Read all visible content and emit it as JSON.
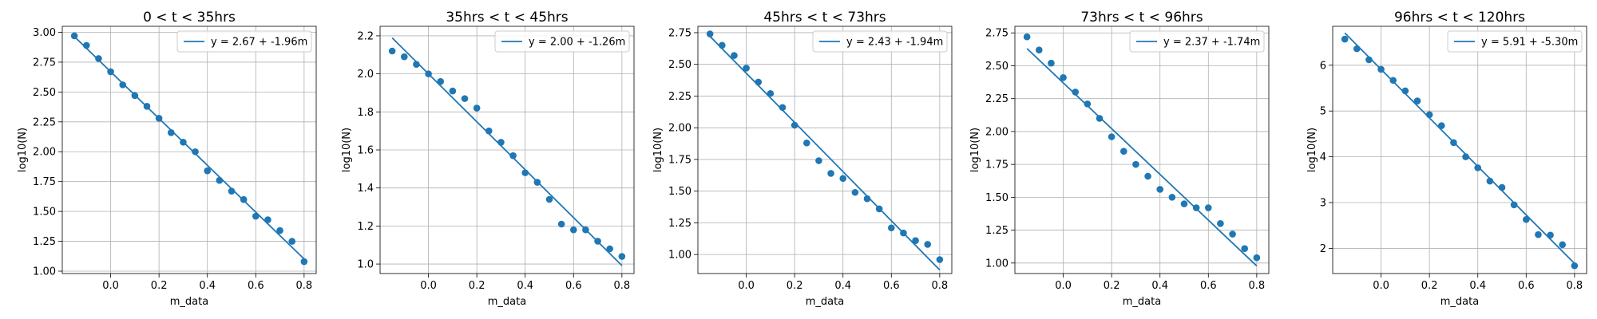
{
  "colors": {
    "series": "#1f77b4",
    "grid": "#b0b0b0",
    "legend_border": "#cccccc"
  },
  "chart_data": [
    {
      "type": "scatter",
      "title": "0 < t < 35hrs",
      "xlabel": "m_data",
      "ylabel": "log10(N)",
      "xlim": [
        -0.2,
        0.85
      ],
      "ylim": [
        0.98,
        3.05
      ],
      "xticks": [
        0.0,
        0.2,
        0.4,
        0.6,
        0.8
      ],
      "xtick_labels": [
        "0.0",
        "0.2",
        "0.4",
        "0.6",
        "0.8"
      ],
      "yticks": [
        1.0,
        1.25,
        1.5,
        1.75,
        2.0,
        2.25,
        2.5,
        2.75,
        3.0
      ],
      "ytick_labels": [
        "1.00",
        "1.25",
        "1.50",
        "1.75",
        "2.00",
        "2.25",
        "2.50",
        "2.75",
        "3.00"
      ],
      "grid": true,
      "legend_position": "top-right",
      "x": [
        -0.15,
        -0.1,
        -0.05,
        0.0,
        0.05,
        0.1,
        0.15,
        0.2,
        0.25,
        0.3,
        0.35,
        0.4,
        0.45,
        0.5,
        0.55,
        0.6,
        0.65,
        0.7,
        0.75,
        0.8
      ],
      "y": [
        2.97,
        2.89,
        2.78,
        2.67,
        2.56,
        2.47,
        2.38,
        2.28,
        2.16,
        2.08,
        2.0,
        1.84,
        1.76,
        1.67,
        1.6,
        1.46,
        1.43,
        1.34,
        1.25,
        1.08
      ],
      "fit": {
        "label": "y = 2.67 + -1.96m",
        "intercept": 2.67,
        "slope": -1.96,
        "x_range": [
          -0.15,
          0.8
        ]
      }
    },
    {
      "type": "scatter",
      "title": "35hrs < t < 45hrs",
      "xlabel": "m_data",
      "ylabel": "log10(N)",
      "xlim": [
        -0.2,
        0.85
      ],
      "ylim": [
        0.95,
        2.25
      ],
      "xticks": [
        0.0,
        0.2,
        0.4,
        0.6,
        0.8
      ],
      "xtick_labels": [
        "0.0",
        "0.2",
        "0.4",
        "0.6",
        "0.8"
      ],
      "yticks": [
        1.0,
        1.2,
        1.4,
        1.6,
        1.8,
        2.0,
        2.2
      ],
      "ytick_labels": [
        "1.0",
        "1.2",
        "1.4",
        "1.6",
        "1.8",
        "2.0",
        "2.2"
      ],
      "grid": true,
      "legend_position": "top-right",
      "x": [
        -0.15,
        -0.1,
        -0.05,
        0.0,
        0.05,
        0.1,
        0.15,
        0.2,
        0.25,
        0.3,
        0.35,
        0.4,
        0.45,
        0.5,
        0.55,
        0.6,
        0.65,
        0.7,
        0.75,
        0.8
      ],
      "y": [
        2.12,
        2.09,
        2.05,
        2.0,
        1.96,
        1.91,
        1.87,
        1.82,
        1.7,
        1.64,
        1.57,
        1.48,
        1.43,
        1.34,
        1.21,
        1.18,
        1.18,
        1.12,
        1.08,
        1.04
      ],
      "fit": {
        "label": "y = 2.00 + -1.26m",
        "intercept": 2.0,
        "slope": -1.26,
        "x_range": [
          -0.15,
          0.8
        ]
      }
    },
    {
      "type": "scatter",
      "title": "45hrs < t < 73hrs",
      "xlabel": "m_data",
      "ylabel": "log10(N)",
      "xlim": [
        -0.2,
        0.85
      ],
      "ylim": [
        0.85,
        2.8
      ],
      "xticks": [
        0.0,
        0.2,
        0.4,
        0.6,
        0.8
      ],
      "xtick_labels": [
        "0.0",
        "0.2",
        "0.4",
        "0.6",
        "0.8"
      ],
      "yticks": [
        1.0,
        1.25,
        1.5,
        1.75,
        2.0,
        2.25,
        2.5,
        2.75
      ],
      "ytick_labels": [
        "1.00",
        "1.25",
        "1.50",
        "1.75",
        "2.00",
        "2.25",
        "2.50",
        "2.75"
      ],
      "grid": true,
      "legend_position": "top-right",
      "x": [
        -0.15,
        -0.1,
        -0.05,
        0.0,
        0.05,
        0.1,
        0.15,
        0.2,
        0.25,
        0.3,
        0.35,
        0.4,
        0.45,
        0.5,
        0.55,
        0.6,
        0.65,
        0.7,
        0.75,
        0.8
      ],
      "y": [
        2.74,
        2.65,
        2.57,
        2.47,
        2.36,
        2.27,
        2.16,
        2.02,
        1.88,
        1.74,
        1.64,
        1.6,
        1.49,
        1.44,
        1.36,
        1.21,
        1.17,
        1.11,
        1.08,
        0.96
      ],
      "fit": {
        "label": "y = 2.43 + -1.94m",
        "intercept": 2.43,
        "slope": -1.94,
        "x_range": [
          -0.15,
          0.8
        ]
      }
    },
    {
      "type": "scatter",
      "title": "73hrs < t < 96hrs",
      "xlabel": "m_data",
      "ylabel": "log10(N)",
      "xlim": [
        -0.2,
        0.85
      ],
      "ylim": [
        0.92,
        2.8
      ],
      "xticks": [
        0.0,
        0.2,
        0.4,
        0.6,
        0.8
      ],
      "xtick_labels": [
        "0.0",
        "0.2",
        "0.4",
        "0.6",
        "0.8"
      ],
      "yticks": [
        1.0,
        1.25,
        1.5,
        1.75,
        2.0,
        2.25,
        2.5,
        2.75
      ],
      "ytick_labels": [
        "1.00",
        "1.25",
        "1.50",
        "1.75",
        "2.00",
        "2.25",
        "2.50",
        "2.75"
      ],
      "grid": true,
      "legend_position": "top-right",
      "x": [
        -0.15,
        -0.1,
        -0.05,
        0.0,
        0.05,
        0.1,
        0.15,
        0.2,
        0.25,
        0.3,
        0.35,
        0.4,
        0.45,
        0.5,
        0.55,
        0.6,
        0.65,
        0.7,
        0.75,
        0.8
      ],
      "y": [
        2.72,
        2.62,
        2.52,
        2.41,
        2.3,
        2.21,
        2.1,
        1.96,
        1.85,
        1.75,
        1.66,
        1.56,
        1.5,
        1.45,
        1.42,
        1.42,
        1.3,
        1.22,
        1.11,
        1.04
      ],
      "fit": {
        "label": "y = 2.37 + -1.74m",
        "intercept": 2.37,
        "slope": -1.74,
        "x_range": [
          -0.15,
          0.8
        ]
      }
    },
    {
      "type": "scatter",
      "title": "96hrs < t < 120hrs",
      "xlabel": "m_data",
      "ylabel": "log10(N)",
      "xlim": [
        -0.2,
        0.85
      ],
      "ylim": [
        1.45,
        6.85
      ],
      "xticks": [
        0.0,
        0.2,
        0.4,
        0.6,
        0.8
      ],
      "xtick_labels": [
        "0.0",
        "0.2",
        "0.4",
        "0.6",
        "0.8"
      ],
      "yticks": [
        2,
        3,
        4,
        5,
        6
      ],
      "ytick_labels": [
        "2",
        "3",
        "4",
        "5",
        "6"
      ],
      "grid": true,
      "legend_position": "top-right",
      "x": [
        -0.15,
        -0.1,
        -0.05,
        0.0,
        0.05,
        0.1,
        0.15,
        0.2,
        0.25,
        0.3,
        0.35,
        0.4,
        0.45,
        0.5,
        0.55,
        0.6,
        0.65,
        0.7,
        0.75,
        0.8
      ],
      "y": [
        6.57,
        6.36,
        6.12,
        5.91,
        5.67,
        5.44,
        5.22,
        4.92,
        4.68,
        4.31,
        4.0,
        3.76,
        3.47,
        3.33,
        2.95,
        2.63,
        2.3,
        2.29,
        2.08,
        1.62
      ],
      "fit": {
        "label": "y = 5.91 + -5.30m",
        "intercept": 5.91,
        "slope": -5.3,
        "x_range": [
          -0.15,
          0.8
        ]
      }
    }
  ]
}
